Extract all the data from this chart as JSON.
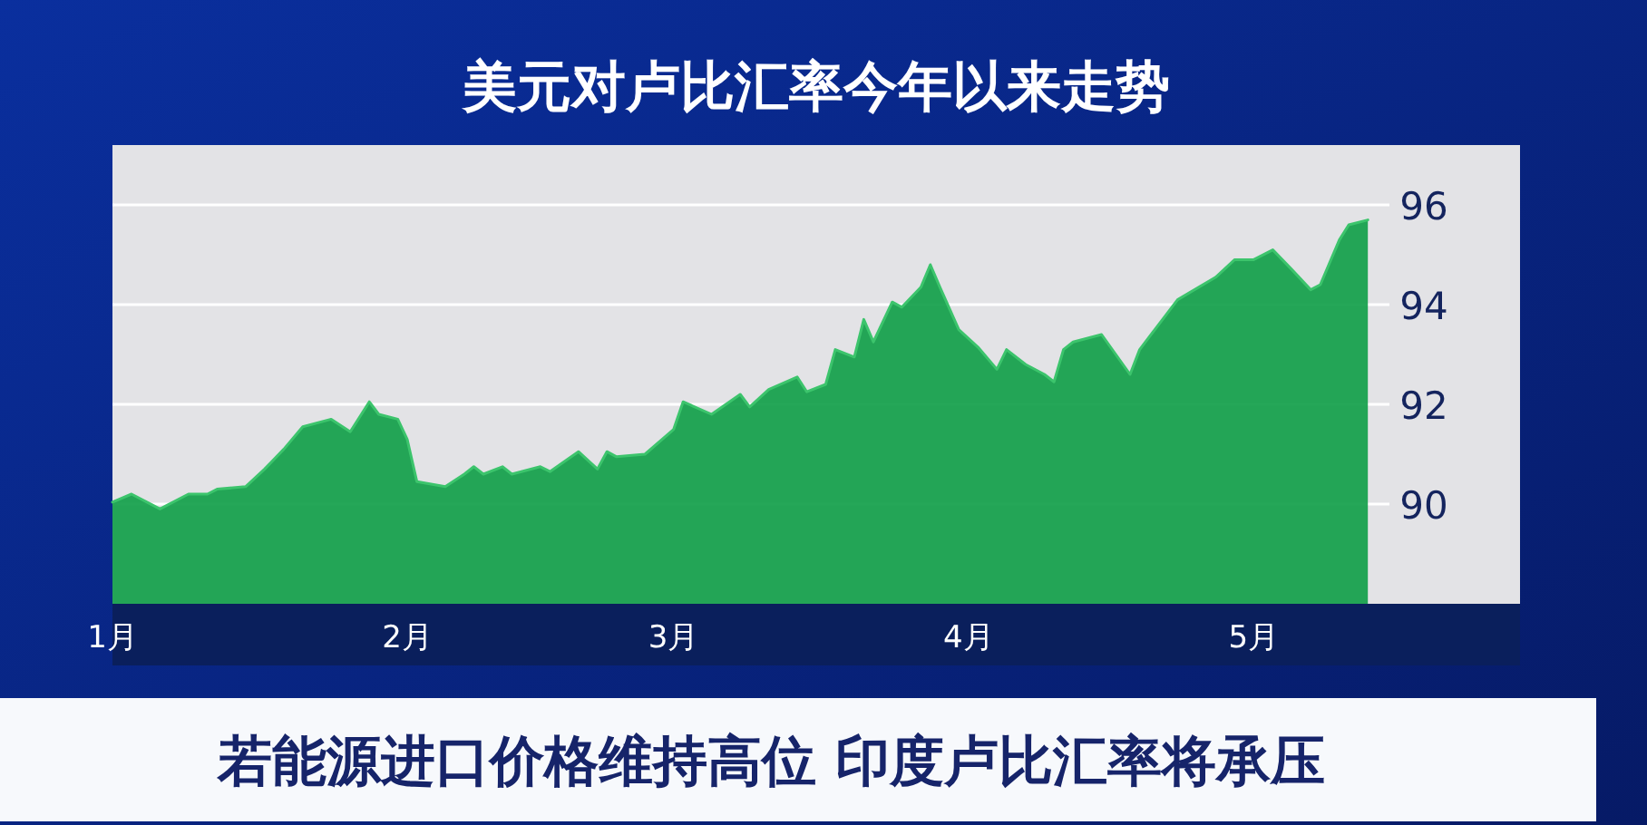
{
  "chart_data": {
    "type": "area",
    "title": "美元对卢比汇率今年以来走势",
    "annotations": [
      "若能源进口价格维持高位 印度卢比汇率将承压"
    ],
    "x": [
      "--01-01",
      "--01-03",
      "--01-06",
      "--01-09",
      "--01-11",
      "--01-12",
      "--01-15",
      "--01-17",
      "--01-19",
      "--01-21",
      "--01-24",
      "--01-26",
      "--01-28",
      "--01-29",
      "--01-31",
      "--02-01",
      "--02-02",
      "--02-05",
      "--02-07",
      "--02-08",
      "--02-09",
      "--02-11",
      "--02-12",
      "--02-15",
      "--02-16",
      "--02-19",
      "--02-21",
      "--02-22",
      "--02-23",
      "--02-26",
      "--03-01",
      "--03-02",
      "--03-05",
      "--03-08",
      "--03-09",
      "--03-11",
      "--03-14",
      "--03-15",
      "--03-17",
      "--03-18",
      "--03-20",
      "--03-21",
      "--03-22",
      "--03-24",
      "--03-25",
      "--03-27",
      "--03-28",
      "--03-29",
      "--03-31",
      "--04-02",
      "--04-04",
      "--04-05",
      "--04-07",
      "--04-09",
      "--04-10",
      "--04-11",
      "--04-12",
      "--04-15",
      "--04-18",
      "--04-19",
      "--04-23",
      "--04-27",
      "--04-29",
      "--05-01",
      "--05-03",
      "--05-05",
      "--05-07",
      "--05-08",
      "--05-10",
      "--05-11",
      "--05-13"
    ],
    "series": [
      {
        "color": "#12a04a",
        "values": [
          90.04,
          90.2,
          89.9,
          90.2,
          90.2,
          90.3,
          90.35,
          90.7,
          91.1,
          91.55,
          91.7,
          91.45,
          92.05,
          91.8,
          91.7,
          91.3,
          90.45,
          90.35,
          90.6,
          90.75,
          90.6,
          90.75,
          90.6,
          90.75,
          90.65,
          91.05,
          90.7,
          91.05,
          90.95,
          91.0,
          91.5,
          92.05,
          91.8,
          92.2,
          91.95,
          92.3,
          92.55,
          92.25,
          92.4,
          93.1,
          92.95,
          93.7,
          93.25,
          94.05,
          93.95,
          94.35,
          94.8,
          94.35,
          93.5,
          93.15,
          92.7,
          93.1,
          92.8,
          92.6,
          92.45,
          93.1,
          93.25,
          93.4,
          92.6,
          93.1,
          94.1,
          94.55,
          94.9,
          94.9,
          95.1,
          94.7,
          94.3,
          94.4,
          95.3,
          95.6,
          95.7
        ]
      }
    ],
    "xlim": [
      "--01-01",
      "--05-29"
    ],
    "xticks": [
      {
        "value": "--01-01",
        "label": "1月"
      },
      {
        "value": "--02-01",
        "label": "2月"
      },
      {
        "value": "--03-01",
        "label": "3月"
      },
      {
        "value": "--04-01",
        "label": "4月"
      },
      {
        "value": "--05-01",
        "label": "5月"
      }
    ],
    "ylim": [
      88,
      97.2
    ],
    "yticks": [
      90,
      92,
      94,
      96
    ],
    "grid": "y"
  }
}
